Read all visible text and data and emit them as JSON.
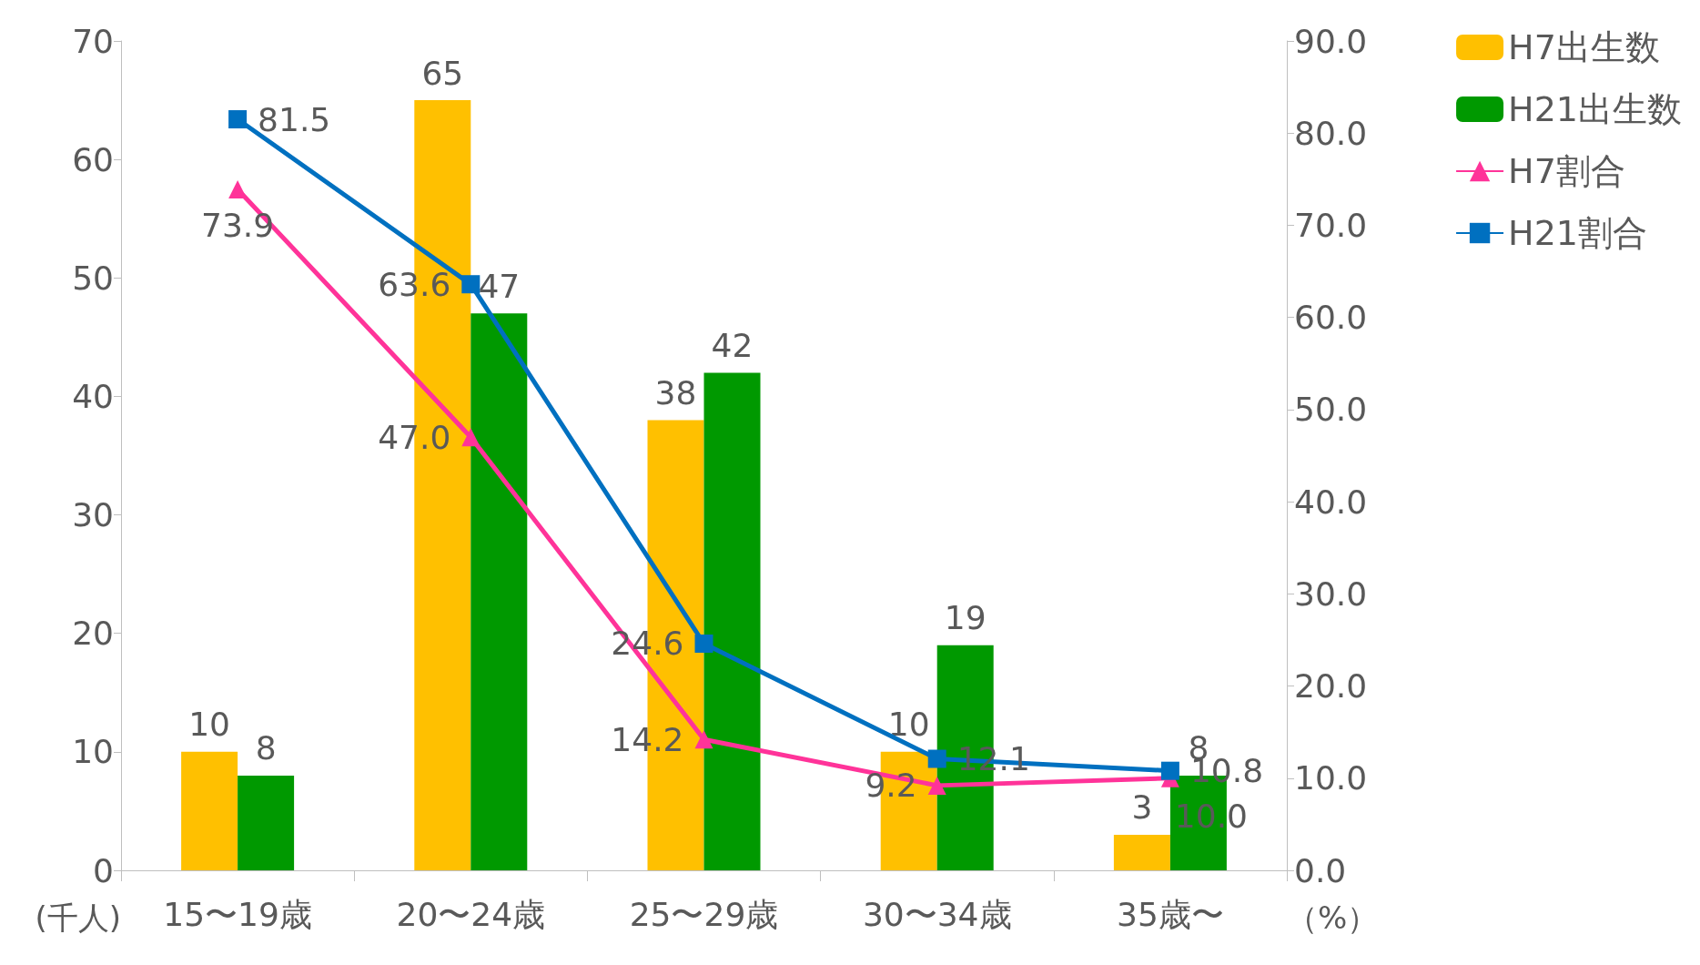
{
  "chart_data": {
    "type": "bar",
    "categories": [
      "15〜19歳",
      "20〜24歳",
      "25〜29歳",
      "30〜34歳",
      "35歳〜"
    ],
    "ylabel": "(千人)",
    "y2label": "（%）",
    "ylim": [
      0,
      70
    ],
    "yticks": [
      0,
      10,
      20,
      30,
      40,
      50,
      60,
      70
    ],
    "y2lim": [
      0,
      90
    ],
    "y2ticks": [
      {
        "value": 0,
        "label": "0.0"
      },
      {
        "value": 10,
        "label": "10.0"
      },
      {
        "value": 20,
        "label": "20.0"
      },
      {
        "value": 30,
        "label": "30.0"
      },
      {
        "value": 40,
        "label": "40.0"
      },
      {
        "value": 50,
        "label": "50.0"
      },
      {
        "value": 60,
        "label": "60.0"
      },
      {
        "value": 70,
        "label": "70.0"
      },
      {
        "value": 80,
        "label": "80.0"
      },
      {
        "value": 90,
        "label": "90.0"
      }
    ],
    "grid": false,
    "legend": "top right",
    "series": [
      {
        "name": "H7出生数",
        "color": "#ffc000",
        "values": [
          10,
          65,
          38,
          10,
          3
        ],
        "value_labels": [
          "10",
          "65",
          "38",
          "10",
          "3"
        ]
      },
      {
        "name": "H21出生数",
        "color": "#009900",
        "values": [
          8,
          47,
          42,
          19,
          8
        ],
        "value_labels": [
          "8",
          "47",
          "42",
          "19",
          "8"
        ]
      },
      {
        "name": "H7割合",
        "type": "line",
        "axis": "y2",
        "marker": "triangle",
        "color": "#ff3399",
        "values": [
          73.9,
          47.0,
          14.2,
          9.2,
          10.0
        ],
        "value_labels": [
          "73.9",
          "47.0",
          "14.2",
          "9.2",
          "10.0"
        ]
      },
      {
        "name": "H21割合",
        "type": "line",
        "axis": "y2",
        "marker": "square",
        "color": "#0070c0",
        "values": [
          81.5,
          63.6,
          24.6,
          12.1,
          10.8
        ],
        "value_labels": [
          "81.5",
          "63.6",
          "24.6",
          "12.1",
          "10.8"
        ]
      }
    ]
  }
}
